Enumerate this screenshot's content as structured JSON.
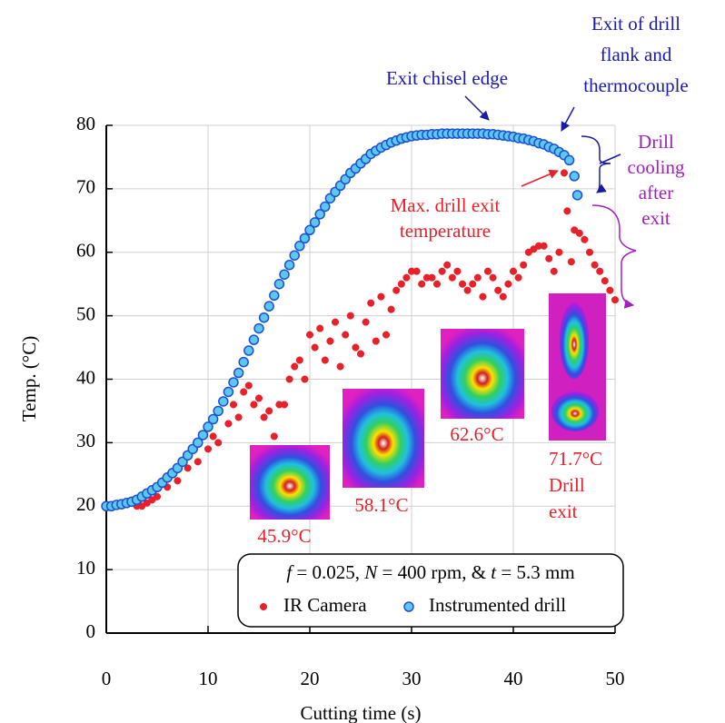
{
  "chart_data": {
    "type": "scatter",
    "xlabel": "Cutting time (s)",
    "ylabel": "Temp. (°C)",
    "xlim": [
      0,
      50
    ],
    "ylim": [
      0,
      80
    ],
    "xticks": [
      0,
      10,
      20,
      30,
      40,
      50
    ],
    "yticks": [
      0,
      10,
      20,
      30,
      40,
      50,
      60,
      70,
      80
    ],
    "grid": true,
    "series": [
      {
        "name": "IR Camera",
        "color": "#e8202a",
        "x": [
          3,
          3.5,
          4,
          4.5,
          5,
          6,
          7,
          8,
          9,
          10,
          10.5,
          11,
          12,
          12.5,
          13,
          13.5,
          14,
          14.5,
          15,
          15.5,
          16,
          16.5,
          17,
          17.5,
          18,
          18.5,
          19,
          19.5,
          20,
          20.5,
          21,
          21.5,
          22,
          22.5,
          23,
          23.5,
          24,
          24.5,
          25,
          25.5,
          26,
          26.5,
          27,
          27.5,
          28,
          28.5,
          29,
          29.5,
          30,
          30.5,
          31,
          31.5,
          32,
          32.5,
          33,
          33.5,
          34,
          34.5,
          35,
          35.5,
          36,
          36.5,
          37,
          37.5,
          38,
          38.5,
          39,
          39.5,
          40,
          40.5,
          41,
          41.5,
          42,
          42.5,
          43,
          43.5,
          44,
          44.5,
          45,
          45.3,
          45.7,
          46,
          46.5,
          47,
          47.5,
          48,
          48.5,
          49,
          49.5,
          50
        ],
        "values": [
          20,
          20,
          20.5,
          21,
          21.5,
          23,
          24,
          26,
          27,
          29,
          31,
          30,
          33,
          36,
          34,
          38,
          39,
          36,
          37,
          34,
          35,
          31,
          36,
          36,
          40,
          42,
          43,
          40,
          47,
          45,
          48,
          43,
          46,
          49,
          42,
          47,
          50,
          45,
          44,
          49,
          52,
          46,
          53,
          47,
          51,
          54,
          55,
          56,
          57,
          57,
          55,
          56,
          56,
          55,
          57,
          58,
          56,
          57,
          55,
          54,
          55,
          56,
          53,
          57,
          56,
          54,
          53,
          55,
          57,
          56,
          58,
          60,
          60.5,
          61,
          61,
          59,
          57,
          60,
          72.5,
          66.5,
          58.5,
          63.5,
          63,
          62,
          60,
          58,
          57,
          55.5,
          54,
          52.5
        ]
      },
      {
        "name": "Instrumented drill",
        "color": "#5ac8f0",
        "edge": "#1f4fd0",
        "x": [
          0,
          0.5,
          1,
          1.5,
          2,
          2.5,
          3,
          3.5,
          4,
          4.5,
          5,
          5.5,
          6,
          6.5,
          7,
          7.5,
          8,
          8.5,
          9,
          9.5,
          10,
          10.5,
          11,
          11.5,
          12,
          12.5,
          13,
          13.5,
          14,
          14.5,
          15,
          15.5,
          16,
          16.5,
          17,
          17.5,
          18,
          18.5,
          19,
          19.5,
          20,
          20.5,
          21,
          21.5,
          22,
          22.5,
          23,
          23.5,
          24,
          24.5,
          25,
          25.5,
          26,
          26.5,
          27,
          27.5,
          28,
          28.5,
          29,
          29.5,
          30,
          30.5,
          31,
          31.5,
          32,
          32.5,
          33,
          33.5,
          34,
          34.5,
          35,
          35.5,
          36,
          36.5,
          37,
          37.5,
          38,
          38.5,
          39,
          39.5,
          40,
          40.5,
          41,
          41.5,
          42,
          42.5,
          43,
          43.5,
          44,
          44.5,
          45,
          45.5,
          46,
          46.3
        ],
        "values": [
          20,
          20,
          20.2,
          20.3,
          20.5,
          20.7,
          21,
          21.5,
          22,
          22.5,
          23,
          23.7,
          24.5,
          25.2,
          26,
          27,
          28,
          29,
          30,
          31.2,
          32.5,
          33.7,
          35,
          36.5,
          38,
          39.5,
          41,
          42.7,
          44.5,
          46.2,
          48,
          49.7,
          51.5,
          53.2,
          55,
          56.5,
          58,
          59.5,
          61,
          62.2,
          63.5,
          64.7,
          66,
          67.2,
          68.5,
          69.5,
          70.5,
          71.5,
          72.5,
          73.2,
          74,
          74.7,
          75.5,
          76,
          76.5,
          76.9,
          77.3,
          77.6,
          77.9,
          78.1,
          78.3,
          78.4,
          78.5,
          78.5,
          78.6,
          78.6,
          78.7,
          78.7,
          78.7,
          78.7,
          78.7,
          78.7,
          78.7,
          78.7,
          78.7,
          78.6,
          78.6,
          78.5,
          78.4,
          78.3,
          78.2,
          78,
          77.9,
          77.7,
          77.5,
          77.2,
          77,
          76.6,
          76.3,
          75.8,
          75.3,
          74.5,
          72,
          69
        ]
      }
    ],
    "conditions": [
      "f",
      " = 0.025, ",
      "N",
      " = 400 rpm, & ",
      "t",
      " = 5.3 mm"
    ],
    "annotations": [
      {
        "lines": [
          "Exit chisel edge"
        ],
        "color": "#1a1aa8"
      },
      {
        "lines": [
          "Exit of drill",
          "flank and",
          "thermocouple"
        ],
        "color": "#1a1aa8"
      },
      {
        "lines": [
          "Drill",
          "cooling",
          "after",
          "exit"
        ],
        "color": "#a020c0"
      },
      {
        "lines": [
          "Max. drill exit",
          "temperature"
        ],
        "color": "#e8202a"
      },
      {
        "lines": [
          "45.9°C"
        ],
        "color": "#e8202a"
      },
      {
        "lines": [
          "58.1°C"
        ],
        "color": "#e8202a"
      },
      {
        "lines": [
          "62.6°C"
        ],
        "color": "#e8202a"
      },
      {
        "lines": [
          "71.7°C",
          "Drill",
          "exit"
        ],
        "color": "#e8202a"
      }
    ]
  }
}
